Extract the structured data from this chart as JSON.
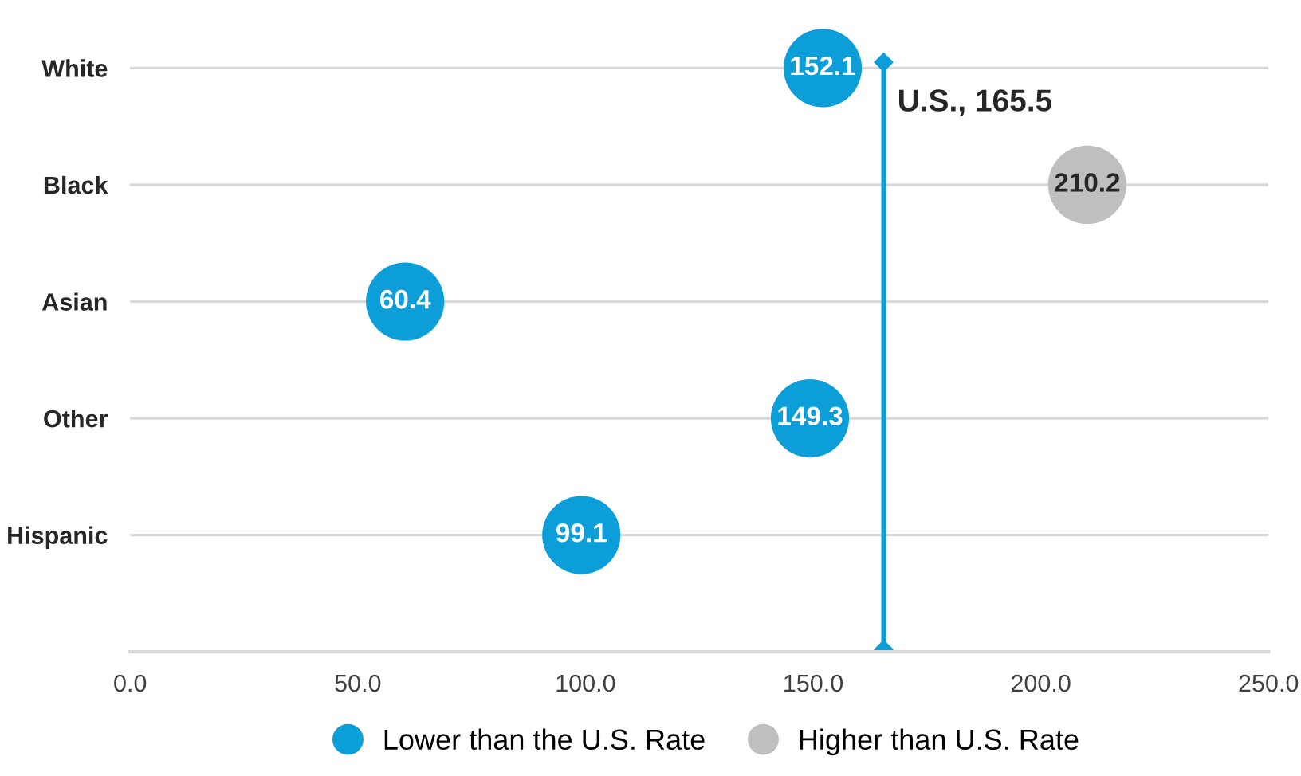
{
  "chart_data": {
    "type": "scatter",
    "orientation": "horizontal",
    "categories": [
      "White",
      "Black",
      "Asian",
      "Other",
      "Hispanic"
    ],
    "series": [
      {
        "name": "Lower than the U.S. Rate",
        "color": "#0b9ed9",
        "values": [
          152.1,
          null,
          60.4,
          149.3,
          99.1
        ]
      },
      {
        "name": "Higher than U.S. Rate",
        "color": "#bfbfbf",
        "values": [
          null,
          210.2,
          null,
          null,
          null
        ]
      }
    ],
    "xlim": [
      0,
      250
    ],
    "xticks": [
      {
        "value": 0,
        "label": "0.0"
      },
      {
        "value": 50,
        "label": "50.0"
      },
      {
        "value": 100,
        "label": "100.0"
      },
      {
        "value": 150,
        "label": "150.0"
      },
      {
        "value": 200,
        "label": "200.0"
      },
      {
        "value": 250,
        "label": "250.0"
      }
    ],
    "ref_lines": [
      {
        "axis": "x",
        "value": 165.5,
        "label": "U.S., 165.5",
        "color": "#0b9ed9"
      }
    ],
    "data_labels": true,
    "marker": "circle",
    "grid": "y",
    "legend": "bottom"
  }
}
